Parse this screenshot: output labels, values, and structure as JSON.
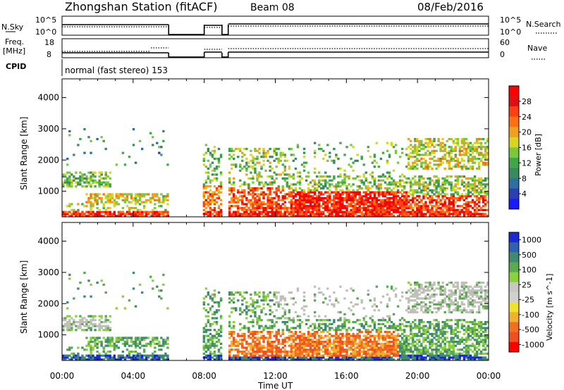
{
  "header": {
    "title": "Zhongshan Station (fitACF)",
    "beam": "Beam 08",
    "date": "08/Feb/2016"
  },
  "summary_panels": {
    "nsky": {
      "left_label": "N.Sky",
      "right_label": "N.Search",
      "left_ticks": [
        "10^5",
        "10^0"
      ],
      "right_ticks": [
        "10^5",
        "10^0"
      ]
    },
    "freq": {
      "left_label_1": "Freq.",
      "left_label_2": "[MHz]",
      "right_label": "Nave",
      "left_ticks": [
        "18",
        "8"
      ],
      "right_ticks": [
        "60",
        "0"
      ]
    },
    "cpid": {
      "label": "CPID",
      "value": "normal (fast stereo) 153"
    }
  },
  "chart_data": [
    {
      "type": "heatmap",
      "name": "Power",
      "ylabel": "Slant Range [km]",
      "xlabel": "Time UT",
      "x_tick_labels": [
        "00:00",
        "04:00",
        "08:00",
        "12:00",
        "16:00",
        "20:00",
        "00:00"
      ],
      "x_ticks_hours": [
        0,
        4,
        8,
        12,
        16,
        20,
        24
      ],
      "xlim_hours": [
        0,
        24
      ],
      "ylim_km": [
        180,
        4600
      ],
      "y_ticks": [
        1000,
        2000,
        3000,
        4000
      ],
      "colorbar": {
        "label": "Power [dB]",
        "ticks": [
          "4",
          "8",
          "12",
          "16",
          "20",
          "24",
          "28"
        ],
        "colors": [
          "#1a1aff",
          "#2a3fb0",
          "#2e6fa0",
          "#3a8a60",
          "#3fa64a",
          "#7cc83c",
          "#d6d620",
          "#f0a020",
          "#ff7010",
          "#ff4010",
          "#e01010",
          "#ff0000"
        ]
      },
      "data_gaps_hours": [
        [
          6.0,
          7.95
        ],
        [
          9.0,
          9.35
        ]
      ],
      "features": [
        {
          "t": [
            0.0,
            6.0
          ],
          "r": [
            200,
            350
          ],
          "level": "strong"
        },
        {
          "t": [
            0.1,
            2.5
          ],
          "r": [
            1200,
            1600
          ],
          "level": "weak"
        },
        {
          "t": [
            1.5,
            6.0
          ],
          "r": [
            700,
            900
          ],
          "level": "medium"
        },
        {
          "t": [
            8.0,
            12.5
          ],
          "r": [
            300,
            1000
          ],
          "level": "strong"
        },
        {
          "t": [
            12.5,
            19.5
          ],
          "r": [
            300,
            1000
          ],
          "level": "strong"
        },
        {
          "t": [
            9.5,
            24.0
          ],
          "r": [
            1000,
            1500
          ],
          "level": "weak"
        },
        {
          "t": [
            19.0,
            24.0
          ],
          "r": [
            1800,
            2600
          ],
          "level": "medium"
        }
      ]
    },
    {
      "type": "heatmap",
      "name": "Velocity",
      "ylabel": "Slant Range [km]",
      "xlabel": "Time UT",
      "x_tick_labels": [
        "00:00",
        "04:00",
        "08:00",
        "12:00",
        "16:00",
        "20:00",
        "00:00"
      ],
      "x_ticks_hours": [
        0,
        4,
        8,
        12,
        16,
        20,
        24
      ],
      "xlim_hours": [
        0,
        24
      ],
      "ylim_km": [
        180,
        4600
      ],
      "y_ticks": [
        1000,
        2000,
        3000,
        4000
      ],
      "colorbar": {
        "label": "Velocity [m s^-1]",
        "ticks": [
          "1000",
          "500",
          "100",
          "25",
          "-25",
          "-100",
          "-500",
          "-1000"
        ],
        "colors": [
          "#1a2ad0",
          "#3060b0",
          "#3f8a70",
          "#5aaa50",
          "#8cd040",
          "#c8c8c0",
          "#d0d0d0",
          "#f0e030",
          "#f0b030",
          "#f07020",
          "#f05020",
          "#ff0000"
        ]
      },
      "data_gaps_hours": [
        [
          6.0,
          7.95
        ],
        [
          9.0,
          9.35
        ]
      ],
      "ground_scatter_color": "#c0c0b8"
    }
  ]
}
